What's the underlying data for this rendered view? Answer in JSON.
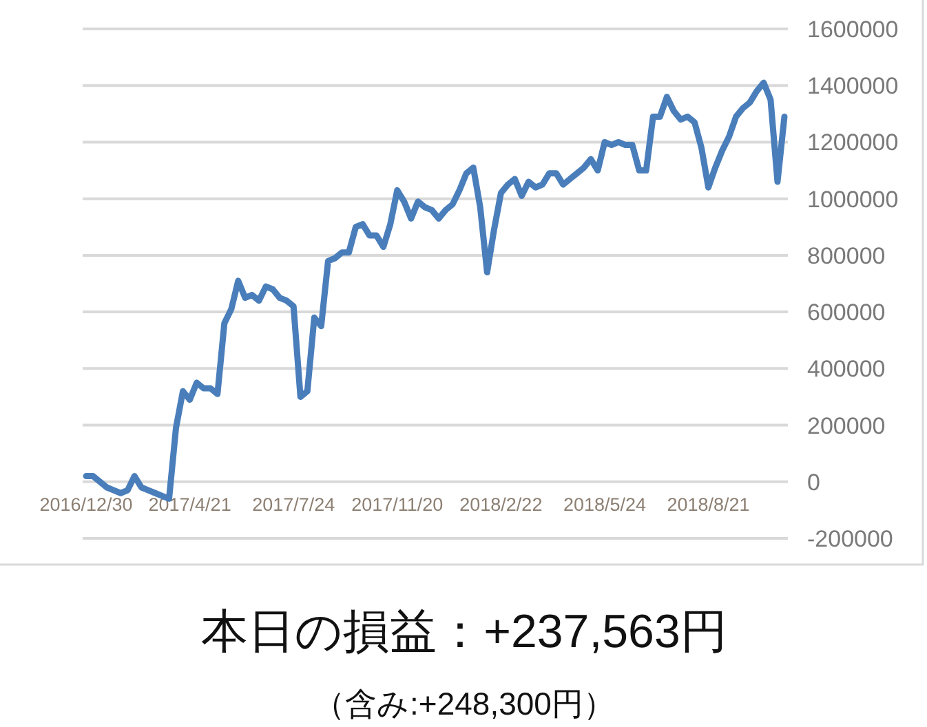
{
  "chart_data": {
    "type": "line",
    "categories": [
      "2016/12/30",
      null,
      null,
      null,
      null,
      null,
      null,
      null,
      null,
      null,
      null,
      null,
      null,
      null,
      null,
      "2017/4/21",
      null,
      null,
      null,
      null,
      null,
      null,
      null,
      null,
      null,
      null,
      null,
      null,
      null,
      null,
      "2017/7/24",
      null,
      null,
      null,
      null,
      null,
      null,
      null,
      null,
      null,
      null,
      null,
      null,
      null,
      null,
      "2017/11/20",
      null,
      null,
      null,
      null,
      null,
      null,
      null,
      null,
      null,
      null,
      null,
      null,
      null,
      null,
      "2018/2/22",
      null,
      null,
      null,
      null,
      null,
      null,
      null,
      null,
      null,
      null,
      null,
      null,
      null,
      null,
      "2018/5/24",
      null,
      null,
      null,
      null,
      null,
      null,
      null,
      null,
      null,
      null,
      null,
      null,
      null,
      null,
      "2018/8/21",
      null,
      null,
      null,
      null,
      null,
      null,
      null,
      null,
      null,
      null,
      null
    ],
    "values": [
      20000,
      20000,
      0,
      -20000,
      -30000,
      -40000,
      -30000,
      20000,
      -20000,
      -30000,
      -40000,
      -50000,
      -60000,
      190000,
      320000,
      290000,
      350000,
      330000,
      330000,
      310000,
      560000,
      610000,
      710000,
      650000,
      660000,
      640000,
      690000,
      680000,
      650000,
      640000,
      620000,
      300000,
      320000,
      580000,
      550000,
      780000,
      790000,
      810000,
      810000,
      900000,
      910000,
      870000,
      870000,
      830000,
      910000,
      1030000,
      990000,
      930000,
      990000,
      970000,
      960000,
      930000,
      960000,
      980000,
      1030000,
      1090000,
      1110000,
      970000,
      740000,
      890000,
      1020000,
      1050000,
      1070000,
      1010000,
      1060000,
      1040000,
      1050000,
      1090000,
      1090000,
      1050000,
      1070000,
      1090000,
      1110000,
      1140000,
      1100000,
      1200000,
      1190000,
      1200000,
      1190000,
      1190000,
      1100000,
      1100000,
      1290000,
      1290000,
      1360000,
      1310000,
      1280000,
      1290000,
      1270000,
      1180000,
      1040000,
      1110000,
      1170000,
      1220000,
      1290000,
      1320000,
      1340000,
      1380000,
      1410000,
      1350000,
      1060000,
      1290000
    ],
    "color": "#4a7ebb",
    "ylim": [
      -200000,
      1600000
    ],
    "yticks": [
      -200000,
      0,
      200000,
      400000,
      600000,
      800000,
      1000000,
      1200000,
      1400000,
      1600000
    ],
    "grid": "y",
    "annotations": [
      "本日の損益：+237,563円",
      "（含み:+248,300円）"
    ]
  }
}
